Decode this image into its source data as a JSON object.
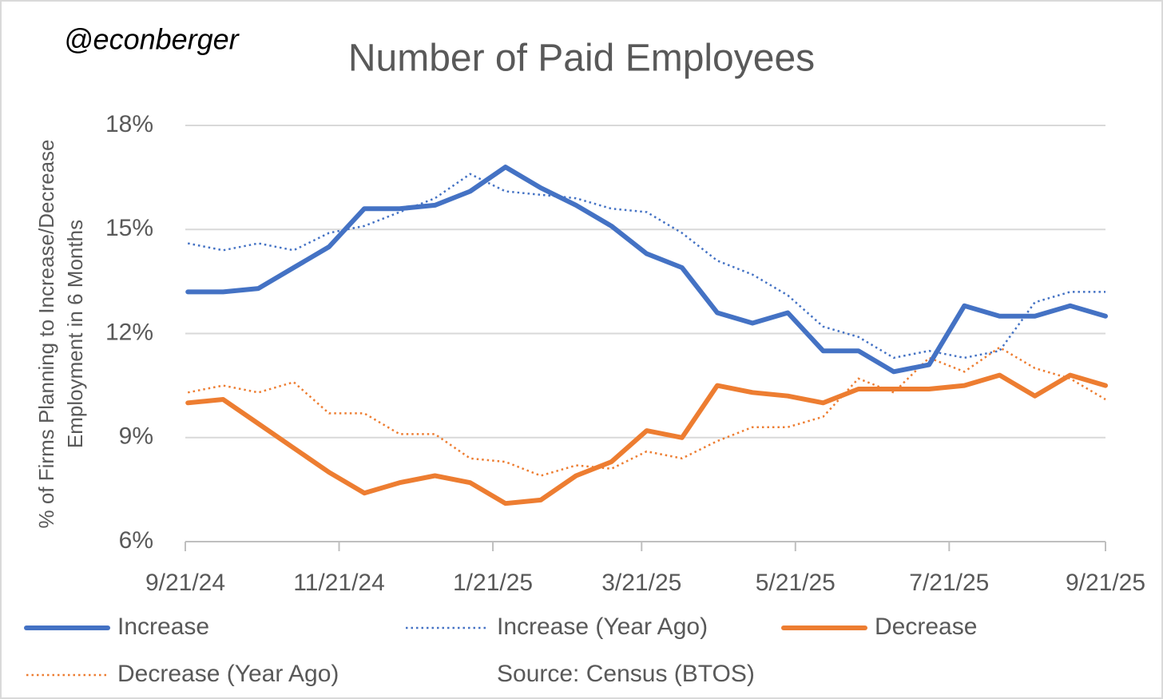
{
  "chart_data": {
    "type": "line",
    "title": "Number of Paid Employees",
    "annotation": "@econberger",
    "y_label_lines": [
      "% of Firms Planning to Increase/Decrease",
      "Employment in 6 Months"
    ],
    "source": "Source: Census (BTOS)",
    "x": [
      "9/22/24",
      "10/6/24",
      "10/20/24",
      "11/3/24",
      "11/17/24",
      "12/1/24",
      "12/15/24",
      "12/29/24",
      "1/12/25",
      "1/26/25",
      "2/9/25",
      "2/23/25",
      "3/9/25",
      "3/23/25",
      "4/6/25",
      "4/20/25",
      "5/4/25",
      "5/18/25",
      "6/1/25",
      "6/15/25",
      "6/29/25",
      "7/13/25",
      "7/27/25",
      "8/10/25",
      "8/24/25",
      "9/7/25",
      "9/21/25"
    ],
    "xlim": [
      "9/21/24",
      "9/21/25"
    ],
    "xticks": [
      "9/21/24",
      "11/21/24",
      "1/21/25",
      "3/21/25",
      "5/21/25",
      "7/21/25",
      "9/21/25"
    ],
    "ylim": [
      6,
      18
    ],
    "yticks": [
      {
        "value": 6,
        "label": "6%"
      },
      {
        "value": 9,
        "label": "9%"
      },
      {
        "value": 12,
        "label": "12%"
      },
      {
        "value": 15,
        "label": "15%"
      },
      {
        "value": 18,
        "label": "18%"
      }
    ],
    "grid": true,
    "legend": "bottom",
    "series": [
      {
        "name": "Increase",
        "color": "#4472c4",
        "line_style": "solid",
        "values": [
          13.2,
          13.2,
          13.3,
          13.9,
          14.5,
          15.6,
          15.6,
          15.7,
          16.1,
          16.8,
          16.2,
          15.7,
          15.1,
          14.3,
          13.9,
          12.6,
          12.3,
          12.6,
          11.5,
          11.5,
          10.9,
          11.1,
          12.8,
          12.5,
          12.5,
          12.8,
          12.5
        ]
      },
      {
        "name": "Increase (Year Ago)",
        "color": "#4472c4",
        "line_style": "dotted",
        "values": [
          14.6,
          14.4,
          14.6,
          14.4,
          14.9,
          15.1,
          15.5,
          15.9,
          16.6,
          16.1,
          16.0,
          15.9,
          15.6,
          15.5,
          14.9,
          14.1,
          13.7,
          13.1,
          12.2,
          11.9,
          11.3,
          11.5,
          11.3,
          11.5,
          12.9,
          13.2,
          13.2
        ]
      },
      {
        "name": "Decrease",
        "color": "#ed7d31",
        "line_style": "solid",
        "values": [
          10.0,
          10.1,
          9.4,
          8.7,
          8.0,
          7.4,
          7.7,
          7.9,
          7.7,
          7.1,
          7.2,
          7.9,
          8.3,
          9.2,
          9.0,
          10.5,
          10.3,
          10.2,
          10.0,
          10.4,
          10.4,
          10.4,
          10.5,
          10.8,
          10.2,
          10.8,
          10.5
        ]
      },
      {
        "name": "Decrease (Year Ago)",
        "color": "#ed7d31",
        "line_style": "dotted",
        "values": [
          10.3,
          10.5,
          10.3,
          10.6,
          9.7,
          9.7,
          9.1,
          9.1,
          8.4,
          8.3,
          7.9,
          8.2,
          8.1,
          8.6,
          8.4,
          8.9,
          9.3,
          9.3,
          9.6,
          10.7,
          10.3,
          11.3,
          10.9,
          11.6,
          11.0,
          10.7,
          10.1
        ]
      }
    ]
  }
}
